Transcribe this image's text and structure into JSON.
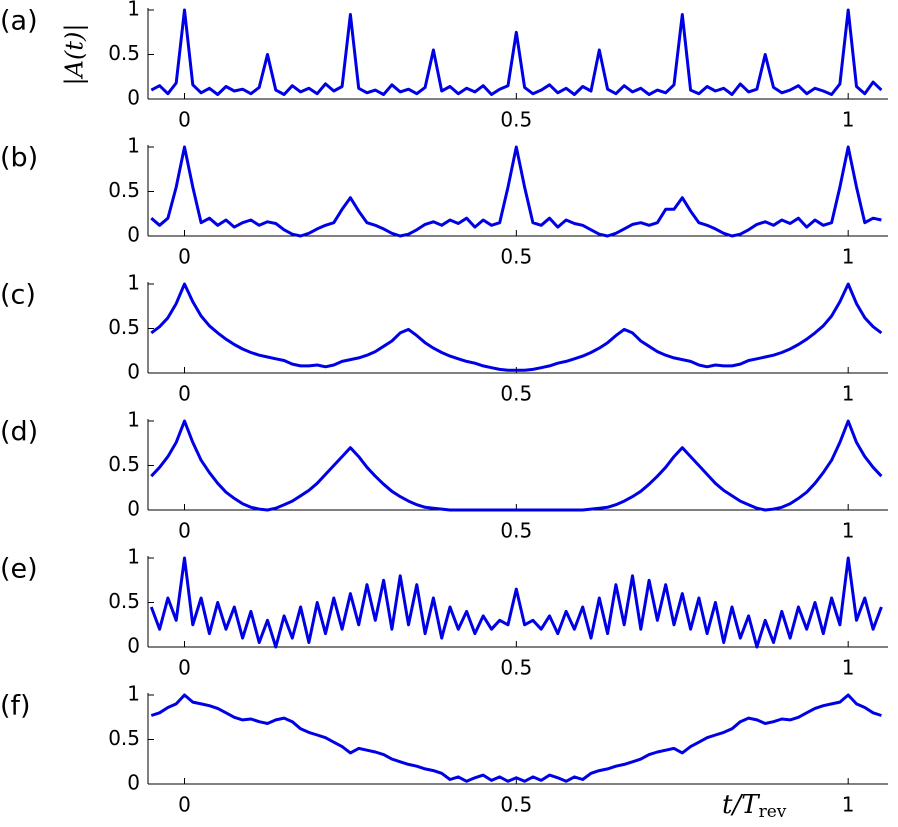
{
  "chart_data": [
    {
      "type": "line",
      "label": "(a)",
      "ylabel": "|A(t)|",
      "color": "#0000e6",
      "xlim": [
        -0.055,
        1.06
      ],
      "ylim": [
        0,
        1
      ],
      "xticks": [
        0,
        0.5,
        1
      ],
      "yticks": [
        0,
        0.5,
        1
      ],
      "x": [
        -0.05,
        -0.0375,
        -0.025,
        -0.0125,
        0,
        0.0125,
        0.025,
        0.0375,
        0.05,
        0.0625,
        0.075,
        0.0875,
        0.1,
        0.1125,
        0.125,
        0.1375,
        0.15,
        0.1625,
        0.175,
        0.1875,
        0.2,
        0.2125,
        0.225,
        0.2375,
        0.25,
        0.2625,
        0.275,
        0.2875,
        0.3,
        0.3125,
        0.325,
        0.3375,
        0.35,
        0.3625,
        0.375,
        0.3875,
        0.4,
        0.4125,
        0.425,
        0.4375,
        0.45,
        0.4625,
        0.475,
        0.4875,
        0.5,
        0.5125,
        0.525,
        0.5375,
        0.55,
        0.5625,
        0.575,
        0.5875,
        0.6,
        0.6125,
        0.625,
        0.6375,
        0.65,
        0.6625,
        0.675,
        0.6875,
        0.7,
        0.7125,
        0.725,
        0.7375,
        0.75,
        0.7625,
        0.775,
        0.7875,
        0.8,
        0.8125,
        0.825,
        0.8375,
        0.85,
        0.8625,
        0.875,
        0.8875,
        0.9,
        0.9125,
        0.925,
        0.9375,
        0.95,
        0.9625,
        0.975,
        0.9875,
        1,
        1.0125,
        1.025,
        1.0375,
        1.05
      ],
      "values": [
        0.1,
        0.15,
        0.06,
        0.18,
        1,
        0.16,
        0.07,
        0.12,
        0.05,
        0.14,
        0.09,
        0.11,
        0.06,
        0.13,
        0.5,
        0.1,
        0.05,
        0.15,
        0.08,
        0.12,
        0.06,
        0.17,
        0.09,
        0.14,
        0.95,
        0.12,
        0.07,
        0.1,
        0.05,
        0.16,
        0.08,
        0.11,
        0.06,
        0.13,
        0.55,
        0.09,
        0.14,
        0.06,
        0.12,
        0.08,
        0.15,
        0.05,
        0.11,
        0.15,
        0.75,
        0.13,
        0.06,
        0.1,
        0.16,
        0.07,
        0.12,
        0.05,
        0.14,
        0.09,
        0.55,
        0.11,
        0.06,
        0.15,
        0.08,
        0.12,
        0.05,
        0.1,
        0.07,
        0.16,
        0.95,
        0.1,
        0.06,
        0.14,
        0.09,
        0.12,
        0.05,
        0.17,
        0.08,
        0.11,
        0.5,
        0.13,
        0.07,
        0.1,
        0.15,
        0.06,
        0.12,
        0.09,
        0.05,
        0.17,
        1,
        0.14,
        0.06,
        0.19,
        0.1
      ]
    },
    {
      "type": "line",
      "label": "(b)",
      "color": "#0000e6",
      "xlim": [
        -0.055,
        1.06
      ],
      "ylim": [
        0,
        1
      ],
      "xticks": [
        0,
        0.5,
        1
      ],
      "yticks": [
        0,
        0.5,
        1
      ],
      "x": [
        -0.05,
        -0.0375,
        -0.025,
        -0.0125,
        0,
        0.0125,
        0.025,
        0.0375,
        0.05,
        0.0625,
        0.075,
        0.0875,
        0.1,
        0.1125,
        0.125,
        0.1375,
        0.15,
        0.1625,
        0.175,
        0.1875,
        0.2,
        0.2125,
        0.225,
        0.2375,
        0.25,
        0.2625,
        0.275,
        0.2875,
        0.3,
        0.3125,
        0.325,
        0.3375,
        0.35,
        0.3625,
        0.375,
        0.3875,
        0.4,
        0.4125,
        0.425,
        0.4375,
        0.45,
        0.4625,
        0.475,
        0.4875,
        0.5,
        0.5125,
        0.525,
        0.5375,
        0.55,
        0.5625,
        0.575,
        0.5875,
        0.6,
        0.6125,
        0.625,
        0.6375,
        0.65,
        0.6625,
        0.675,
        0.6875,
        0.7,
        0.7125,
        0.725,
        0.7375,
        0.75,
        0.7625,
        0.775,
        0.7875,
        0.8,
        0.8125,
        0.825,
        0.8375,
        0.85,
        0.8625,
        0.875,
        0.8875,
        0.9,
        0.9125,
        0.925,
        0.9375,
        0.95,
        0.9625,
        0.975,
        0.9875,
        1,
        1.0125,
        1.025,
        1.0375,
        1.05
      ],
      "values": [
        0.2,
        0.12,
        0.2,
        0.55,
        1,
        0.55,
        0.15,
        0.2,
        0.12,
        0.18,
        0.1,
        0.15,
        0.18,
        0.12,
        0.16,
        0.14,
        0.07,
        0.02,
        0,
        0.03,
        0.08,
        0.12,
        0.15,
        0.3,
        0.43,
        0.28,
        0.15,
        0.12,
        0.08,
        0.03,
        0,
        0.02,
        0.07,
        0.13,
        0.16,
        0.12,
        0.18,
        0.14,
        0.2,
        0.1,
        0.18,
        0.12,
        0.15,
        0.55,
        1,
        0.55,
        0.15,
        0.12,
        0.2,
        0.1,
        0.18,
        0.14,
        0.12,
        0.07,
        0.02,
        0,
        0.03,
        0.08,
        0.13,
        0.15,
        0.12,
        0.15,
        0.3,
        0.3,
        0.43,
        0.28,
        0.15,
        0.12,
        0.08,
        0.03,
        0,
        0.02,
        0.07,
        0.13,
        0.16,
        0.12,
        0.18,
        0.14,
        0.2,
        0.1,
        0.18,
        0.12,
        0.15,
        0.55,
        1,
        0.55,
        0.15,
        0.2,
        0.18
      ]
    },
    {
      "type": "line",
      "label": "(c)",
      "color": "#0000e6",
      "xlim": [
        -0.055,
        1.06
      ],
      "ylim": [
        0,
        1
      ],
      "xticks": [
        0,
        0.5,
        1
      ],
      "yticks": [
        0,
        0.5,
        1
      ],
      "x": [
        -0.05,
        -0.0375,
        -0.025,
        -0.0125,
        0,
        0.0125,
        0.025,
        0.0375,
        0.05,
        0.0625,
        0.075,
        0.0875,
        0.1,
        0.1125,
        0.125,
        0.1375,
        0.15,
        0.1625,
        0.175,
        0.1875,
        0.2,
        0.2125,
        0.225,
        0.2375,
        0.25,
        0.2625,
        0.275,
        0.2875,
        0.3,
        0.3125,
        0.325,
        0.3375,
        0.35,
        0.3625,
        0.375,
        0.3875,
        0.4,
        0.4125,
        0.425,
        0.4375,
        0.45,
        0.4625,
        0.475,
        0.4875,
        0.5,
        0.5125,
        0.525,
        0.5375,
        0.55,
        0.5625,
        0.575,
        0.5875,
        0.6,
        0.6125,
        0.625,
        0.6375,
        0.65,
        0.6625,
        0.675,
        0.6875,
        0.7,
        0.7125,
        0.725,
        0.7375,
        0.75,
        0.7625,
        0.775,
        0.7875,
        0.8,
        0.8125,
        0.825,
        0.8375,
        0.85,
        0.8625,
        0.875,
        0.8875,
        0.9,
        0.9125,
        0.925,
        0.9375,
        0.95,
        0.9625,
        0.975,
        0.9875,
        1,
        1.0125,
        1.025,
        1.0375,
        1.05
      ],
      "values": [
        0.45,
        0.52,
        0.62,
        0.78,
        1,
        0.8,
        0.64,
        0.53,
        0.45,
        0.38,
        0.32,
        0.27,
        0.23,
        0.2,
        0.18,
        0.16,
        0.14,
        0.1,
        0.08,
        0.08,
        0.09,
        0.07,
        0.09,
        0.13,
        0.15,
        0.17,
        0.2,
        0.24,
        0.3,
        0.36,
        0.45,
        0.49,
        0.42,
        0.34,
        0.28,
        0.23,
        0.19,
        0.16,
        0.13,
        0.11,
        0.08,
        0.06,
        0.04,
        0.03,
        0.03,
        0.03,
        0.04,
        0.06,
        0.08,
        0.11,
        0.13,
        0.16,
        0.19,
        0.23,
        0.28,
        0.34,
        0.42,
        0.49,
        0.45,
        0.36,
        0.3,
        0.24,
        0.2,
        0.17,
        0.15,
        0.13,
        0.09,
        0.07,
        0.09,
        0.08,
        0.08,
        0.1,
        0.14,
        0.16,
        0.18,
        0.2,
        0.23,
        0.27,
        0.32,
        0.38,
        0.45,
        0.53,
        0.64,
        0.8,
        1,
        0.78,
        0.62,
        0.52,
        0.45
      ]
    },
    {
      "type": "line",
      "label": "(d)",
      "color": "#0000e6",
      "xlim": [
        -0.055,
        1.06
      ],
      "ylim": [
        0,
        1
      ],
      "xticks": [
        0,
        0.5,
        1
      ],
      "yticks": [
        0,
        0.5,
        1
      ],
      "x": [
        -0.05,
        -0.0375,
        -0.025,
        -0.0125,
        0,
        0.0125,
        0.025,
        0.0375,
        0.05,
        0.0625,
        0.075,
        0.0875,
        0.1,
        0.1125,
        0.125,
        0.1375,
        0.15,
        0.1625,
        0.175,
        0.1875,
        0.2,
        0.2125,
        0.225,
        0.2375,
        0.25,
        0.2625,
        0.275,
        0.2875,
        0.3,
        0.3125,
        0.325,
        0.3375,
        0.35,
        0.3625,
        0.375,
        0.3875,
        0.4,
        0.4125,
        0.425,
        0.4375,
        0.45,
        0.4625,
        0.475,
        0.4875,
        0.5,
        0.5125,
        0.525,
        0.5375,
        0.55,
        0.5625,
        0.575,
        0.5875,
        0.6,
        0.6125,
        0.625,
        0.6375,
        0.65,
        0.6625,
        0.675,
        0.6875,
        0.7,
        0.7125,
        0.725,
        0.7375,
        0.75,
        0.7625,
        0.775,
        0.7875,
        0.8,
        0.8125,
        0.825,
        0.8375,
        0.85,
        0.8625,
        0.875,
        0.8875,
        0.9,
        0.9125,
        0.925,
        0.9375,
        0.95,
        0.9625,
        0.975,
        0.9875,
        1,
        1.0125,
        1.025,
        1.0375,
        1.05
      ],
      "values": [
        0.38,
        0.48,
        0.6,
        0.76,
        1,
        0.76,
        0.56,
        0.42,
        0.3,
        0.2,
        0.13,
        0.07,
        0.03,
        0.01,
        0,
        0.02,
        0.06,
        0.1,
        0.16,
        0.22,
        0.3,
        0.4,
        0.5,
        0.6,
        0.7,
        0.6,
        0.48,
        0.38,
        0.29,
        0.21,
        0.15,
        0.1,
        0.06,
        0.03,
        0.02,
        0.01,
        0,
        0,
        0,
        0,
        0,
        0,
        0,
        0,
        0,
        0,
        0,
        0,
        0,
        0,
        0,
        0,
        0,
        0.01,
        0.02,
        0.03,
        0.06,
        0.1,
        0.15,
        0.21,
        0.29,
        0.38,
        0.48,
        0.6,
        0.7,
        0.6,
        0.5,
        0.4,
        0.3,
        0.22,
        0.16,
        0.1,
        0.06,
        0.02,
        0,
        0.01,
        0.03,
        0.07,
        0.13,
        0.2,
        0.3,
        0.42,
        0.56,
        0.76,
        1,
        0.76,
        0.6,
        0.48,
        0.38
      ]
    },
    {
      "type": "line",
      "label": "(e)",
      "color": "#0000e6",
      "xlim": [
        -0.055,
        1.06
      ],
      "ylim": [
        0,
        1
      ],
      "xticks": [
        0,
        0.5,
        1
      ],
      "yticks": [
        0,
        0.5,
        1
      ],
      "x": [
        -0.05,
        -0.0375,
        -0.025,
        -0.0125,
        0,
        0.0125,
        0.025,
        0.0375,
        0.05,
        0.0625,
        0.075,
        0.0875,
        0.1,
        0.1125,
        0.125,
        0.1375,
        0.15,
        0.1625,
        0.175,
        0.1875,
        0.2,
        0.2125,
        0.225,
        0.2375,
        0.25,
        0.2625,
        0.275,
        0.2875,
        0.3,
        0.3125,
        0.325,
        0.3375,
        0.35,
        0.3625,
        0.375,
        0.3875,
        0.4,
        0.4125,
        0.425,
        0.4375,
        0.45,
        0.4625,
        0.475,
        0.4875,
        0.5,
        0.5125,
        0.525,
        0.5375,
        0.55,
        0.5625,
        0.575,
        0.5875,
        0.6,
        0.6125,
        0.625,
        0.6375,
        0.65,
        0.6625,
        0.675,
        0.6875,
        0.7,
        0.7125,
        0.725,
        0.7375,
        0.75,
        0.7625,
        0.775,
        0.7875,
        0.8,
        0.8125,
        0.825,
        0.8375,
        0.85,
        0.8625,
        0.875,
        0.8875,
        0.9,
        0.9125,
        0.925,
        0.9375,
        0.95,
        0.9625,
        0.975,
        0.9875,
        1,
        1.0125,
        1.025,
        1.0375,
        1.05
      ],
      "values": [
        0.45,
        0.2,
        0.55,
        0.3,
        1,
        0.25,
        0.55,
        0.15,
        0.5,
        0.2,
        0.45,
        0.1,
        0.4,
        0.05,
        0.3,
        0,
        0.35,
        0.1,
        0.45,
        0.05,
        0.5,
        0.15,
        0.55,
        0.2,
        0.6,
        0.25,
        0.7,
        0.3,
        0.75,
        0.2,
        0.8,
        0.25,
        0.7,
        0.15,
        0.55,
        0.1,
        0.45,
        0.2,
        0.4,
        0.15,
        0.35,
        0.2,
        0.3,
        0.25,
        0.65,
        0.25,
        0.3,
        0.2,
        0.35,
        0.15,
        0.4,
        0.2,
        0.45,
        0.1,
        0.55,
        0.15,
        0.7,
        0.25,
        0.8,
        0.2,
        0.75,
        0.3,
        0.7,
        0.25,
        0.6,
        0.2,
        0.55,
        0.15,
        0.5,
        0.05,
        0.45,
        0.1,
        0.35,
        0,
        0.3,
        0.05,
        0.4,
        0.1,
        0.45,
        0.2,
        0.5,
        0.15,
        0.55,
        0.25,
        1,
        0.3,
        0.55,
        0.2,
        0.45
      ]
    },
    {
      "type": "line",
      "label": "(f)",
      "xlabel": {
        "main": "t/T",
        "sub": "rev"
      },
      "color": "#0000e6",
      "xlim": [
        -0.055,
        1.06
      ],
      "ylim": [
        0,
        1
      ],
      "xticks": [
        0,
        0.5,
        1
      ],
      "yticks": [
        0,
        0.5,
        1
      ],
      "x": [
        -0.05,
        -0.0375,
        -0.025,
        -0.0125,
        0,
        0.0125,
        0.025,
        0.0375,
        0.05,
        0.0625,
        0.075,
        0.0875,
        0.1,
        0.1125,
        0.125,
        0.1375,
        0.15,
        0.1625,
        0.175,
        0.1875,
        0.2,
        0.2125,
        0.225,
        0.2375,
        0.25,
        0.2625,
        0.275,
        0.2875,
        0.3,
        0.3125,
        0.325,
        0.3375,
        0.35,
        0.3625,
        0.375,
        0.3875,
        0.4,
        0.4125,
        0.425,
        0.4375,
        0.45,
        0.4625,
        0.475,
        0.4875,
        0.5,
        0.5125,
        0.525,
        0.5375,
        0.55,
        0.5625,
        0.575,
        0.5875,
        0.6,
        0.6125,
        0.625,
        0.6375,
        0.65,
        0.6625,
        0.675,
        0.6875,
        0.7,
        0.7125,
        0.725,
        0.7375,
        0.75,
        0.7625,
        0.775,
        0.7875,
        0.8,
        0.8125,
        0.825,
        0.8375,
        0.85,
        0.8625,
        0.875,
        0.8875,
        0.9,
        0.9125,
        0.925,
        0.9375,
        0.95,
        0.9625,
        0.975,
        0.9875,
        1,
        1.0125,
        1.025,
        1.0375,
        1.05
      ],
      "values": [
        0.77,
        0.8,
        0.86,
        0.9,
        1,
        0.92,
        0.9,
        0.88,
        0.85,
        0.8,
        0.75,
        0.72,
        0.73,
        0.7,
        0.68,
        0.72,
        0.74,
        0.7,
        0.62,
        0.58,
        0.55,
        0.52,
        0.47,
        0.42,
        0.35,
        0.4,
        0.38,
        0.36,
        0.33,
        0.28,
        0.25,
        0.22,
        0.2,
        0.17,
        0.15,
        0.12,
        0.05,
        0.08,
        0.03,
        0.07,
        0.1,
        0.04,
        0.08,
        0.03,
        0.07,
        0.03,
        0.08,
        0.04,
        0.1,
        0.07,
        0.03,
        0.08,
        0.05,
        0.12,
        0.15,
        0.17,
        0.2,
        0.22,
        0.25,
        0.28,
        0.33,
        0.36,
        0.38,
        0.4,
        0.35,
        0.42,
        0.47,
        0.52,
        0.55,
        0.58,
        0.62,
        0.7,
        0.74,
        0.72,
        0.68,
        0.7,
        0.73,
        0.72,
        0.75,
        0.8,
        0.85,
        0.88,
        0.9,
        0.92,
        1,
        0.9,
        0.86,
        0.8,
        0.77
      ]
    }
  ]
}
